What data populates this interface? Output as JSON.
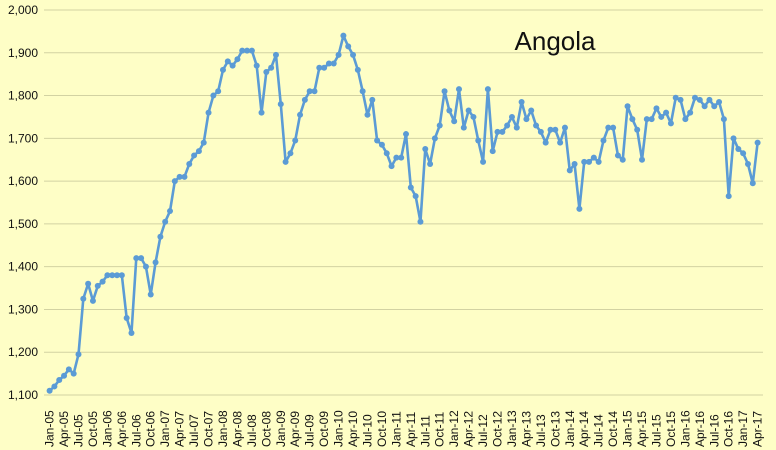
{
  "chart_data": {
    "type": "line",
    "title": "Angola",
    "xlabel": "",
    "ylabel": "",
    "ylim": [
      1100,
      2000
    ],
    "yticks": [
      1100,
      1200,
      1300,
      1400,
      1500,
      1600,
      1700,
      1800,
      1900,
      2000
    ],
    "ytick_labels": [
      "1,100",
      "1,200",
      "1,300",
      "1,400",
      "1,500",
      "1,600",
      "1,700",
      "1,800",
      "1,900",
      "2,000"
    ],
    "grid": true,
    "background_color": "#fefec6",
    "series_color": "#5b9bd5",
    "x_tick_labels": [
      "Jan-05",
      "Apr-05",
      "Jul-05",
      "Oct-05",
      "Jan-06",
      "Apr-06",
      "Jul-06",
      "Oct-06",
      "Jan-07",
      "Apr-07",
      "Jul-07",
      "Oct-07",
      "Jan-08",
      "Apr-08",
      "Jul-08",
      "Oct-08",
      "Jan-09",
      "Apr-09",
      "Jul-09",
      "Oct-09",
      "Jan-10",
      "Apr-10",
      "Jul-10",
      "Oct-10",
      "Jan-11",
      "Apr-11",
      "Jul-11",
      "Oct-11",
      "Jan-12",
      "Apr-12",
      "Jul-12",
      "Oct-12",
      "Jan-13",
      "Apr-13",
      "Jul-13",
      "Oct-13",
      "Jan-14",
      "Apr-14",
      "Jul-14",
      "Oct-14",
      "Jan-15",
      "Apr-15",
      "Jul-15",
      "Oct-15",
      "Jan-16",
      "Apr-16",
      "Jul-16",
      "Oct-16",
      "Jan-17",
      "Apr-17"
    ],
    "x_start": "Jan-05",
    "x_end": "May-17",
    "series": [
      {
        "values": [
          1110,
          1120,
          1135,
          1145,
          1160,
          1150,
          1195,
          1325,
          1360,
          1320,
          1355,
          1365,
          1380,
          1380,
          1380,
          1380,
          1280,
          1245,
          1420,
          1420,
          1400,
          1335,
          1410,
          1470,
          1505,
          1530,
          1600,
          1610,
          1610,
          1640,
          1660,
          1670,
          1690,
          1760,
          1800,
          1810,
          1860,
          1880,
          1870,
          1885,
          1905,
          1905,
          1905,
          1870,
          1760,
          1855,
          1865,
          1895,
          1780,
          1645,
          1665,
          1695,
          1755,
          1790,
          1810,
          1810,
          1865,
          1865,
          1875,
          1875,
          1895,
          1940,
          1915,
          1895,
          1860,
          1810,
          1755,
          1790,
          1695,
          1685,
          1665,
          1635,
          1655,
          1655,
          1710,
          1585,
          1565,
          1505,
          1675,
          1640,
          1700,
          1730,
          1810,
          1765,
          1740,
          1815,
          1725,
          1765,
          1750,
          1695,
          1645,
          1815,
          1670,
          1715,
          1715,
          1730,
          1750,
          1725,
          1785,
          1745,
          1765,
          1730,
          1715,
          1690,
          1720,
          1720,
          1690,
          1725,
          1625,
          1640,
          1535,
          1645,
          1645,
          1655,
          1645,
          1695,
          1725,
          1725,
          1660,
          1650,
          1775,
          1745,
          1720,
          1650,
          1745,
          1745,
          1770,
          1750,
          1760,
          1735,
          1795,
          1790,
          1745,
          1760,
          1795,
          1790,
          1775,
          1790,
          1775,
          1785,
          1745,
          1565,
          1700,
          1675,
          1665,
          1640,
          1595,
          1690
        ]
      }
    ]
  }
}
